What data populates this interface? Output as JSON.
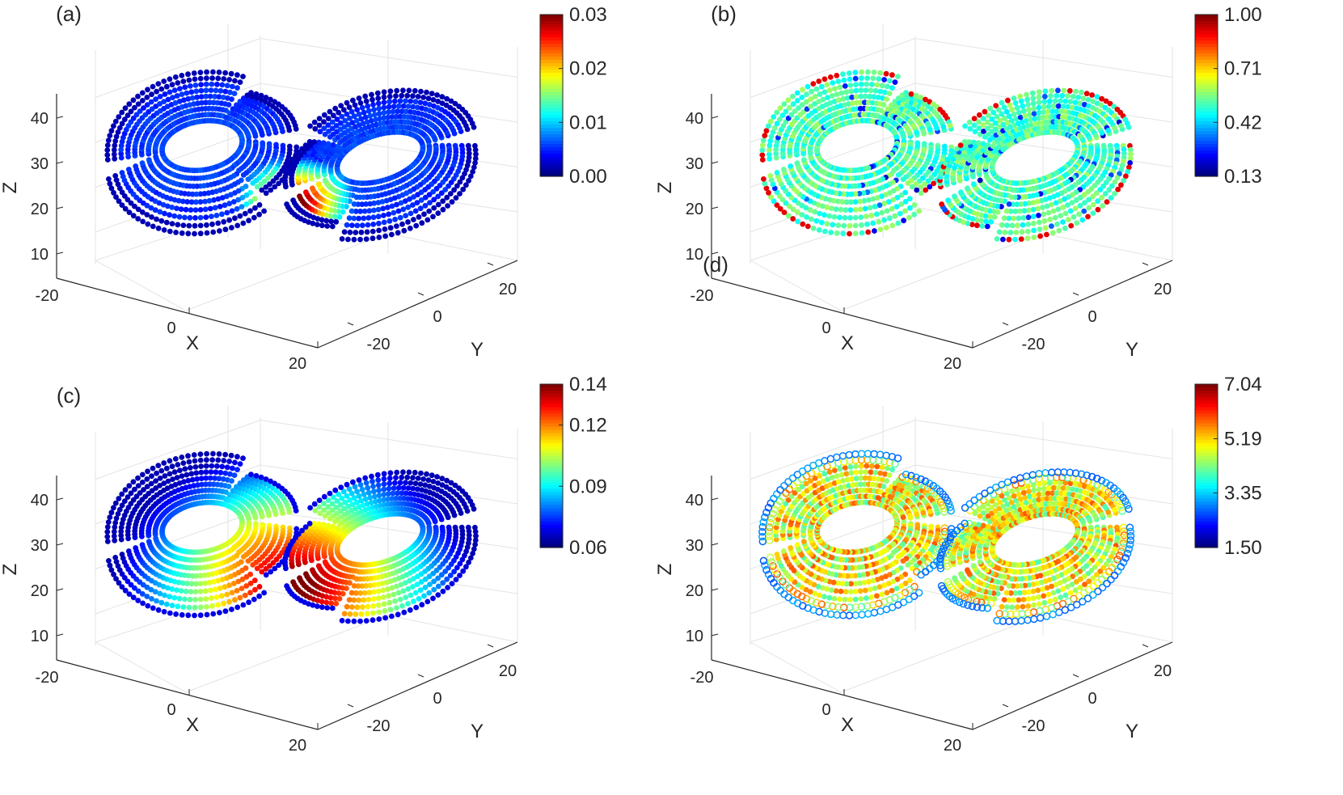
{
  "figure": {
    "panel_count": 4
  },
  "chart_data": [
    {
      "type": "scatter",
      "subtype": "3d-scatter-colored",
      "panel_label": "(a)",
      "description_hidden": true,
      "xlabel": "X",
      "ylabel": "Y",
      "zlabel": "Z",
      "x_ticks": [
        "-20",
        "0",
        "20"
      ],
      "y_ticks": [
        "-20",
        "0",
        "20"
      ],
      "z_ticks": [
        "10",
        "20",
        "30",
        "40"
      ],
      "xlim": [
        -20,
        20
      ],
      "ylim": [
        -25,
        25
      ],
      "zlim": [
        5,
        45
      ],
      "colorbar": {
        "colormap": "jet",
        "min": 0.0,
        "max": 0.03,
        "ticks": [
          "0.00",
          "0.01",
          "0.02",
          "0.03"
        ]
      },
      "color_pattern": "center-hot",
      "grid": true
    },
    {
      "type": "scatter",
      "subtype": "3d-scatter-colored",
      "panel_label": "(b)",
      "xlabel": "X",
      "ylabel": "Y",
      "zlabel": "Z",
      "x_ticks": [
        "-20",
        "0",
        "20"
      ],
      "y_ticks": [
        "-20",
        "0",
        "20"
      ],
      "z_ticks": [
        "10",
        "20",
        "30",
        "40"
      ],
      "xlim": [
        -20,
        20
      ],
      "ylim": [
        -25,
        25
      ],
      "zlim": [
        5,
        45
      ],
      "colorbar": {
        "colormap": "jet",
        "min": 0.13,
        "max": 1.0,
        "ticks": [
          "0.13",
          "0.42",
          "0.71",
          "1.00"
        ]
      },
      "color_pattern": "uniform-mid-noisy",
      "grid": true
    },
    {
      "type": "scatter",
      "subtype": "3d-scatter-colored",
      "panel_label": "(c)",
      "xlabel": "X",
      "ylabel": "Y",
      "zlabel": "Z",
      "x_ticks": [
        "-20",
        "0",
        "20"
      ],
      "y_ticks": [
        "-20",
        "0",
        "20"
      ],
      "z_ticks": [
        "10",
        "20",
        "30",
        "40"
      ],
      "xlim": [
        -20,
        20
      ],
      "ylim": [
        -25,
        25
      ],
      "zlim": [
        5,
        45
      ],
      "colorbar": {
        "colormap": "jet",
        "min": 0.06,
        "max": 0.14,
        "ticks": [
          "0.06",
          "0.09",
          "0.12",
          "0.14"
        ]
      },
      "color_pattern": "center-smooth",
      "grid": true
    },
    {
      "type": "scatter",
      "subtype": "3d-scatter-colored",
      "panel_label": "(d)",
      "xlabel": "X",
      "ylabel": "Y",
      "zlabel": "Z",
      "x_ticks": [
        "-20",
        "0",
        "20"
      ],
      "y_ticks": [
        "-20",
        "0",
        "20"
      ],
      "z_ticks": [
        "10",
        "20",
        "30",
        "40"
      ],
      "xlim": [
        -20,
        20
      ],
      "ylim": [
        -25,
        25
      ],
      "zlim": [
        5,
        45
      ],
      "colorbar": {
        "colormap": "jet",
        "min": 1.5,
        "max": 7.04,
        "ticks": [
          "1.50",
          "3.35",
          "5.19",
          "7.04"
        ]
      },
      "color_pattern": "noisy-high-inner",
      "grid": true
    }
  ]
}
